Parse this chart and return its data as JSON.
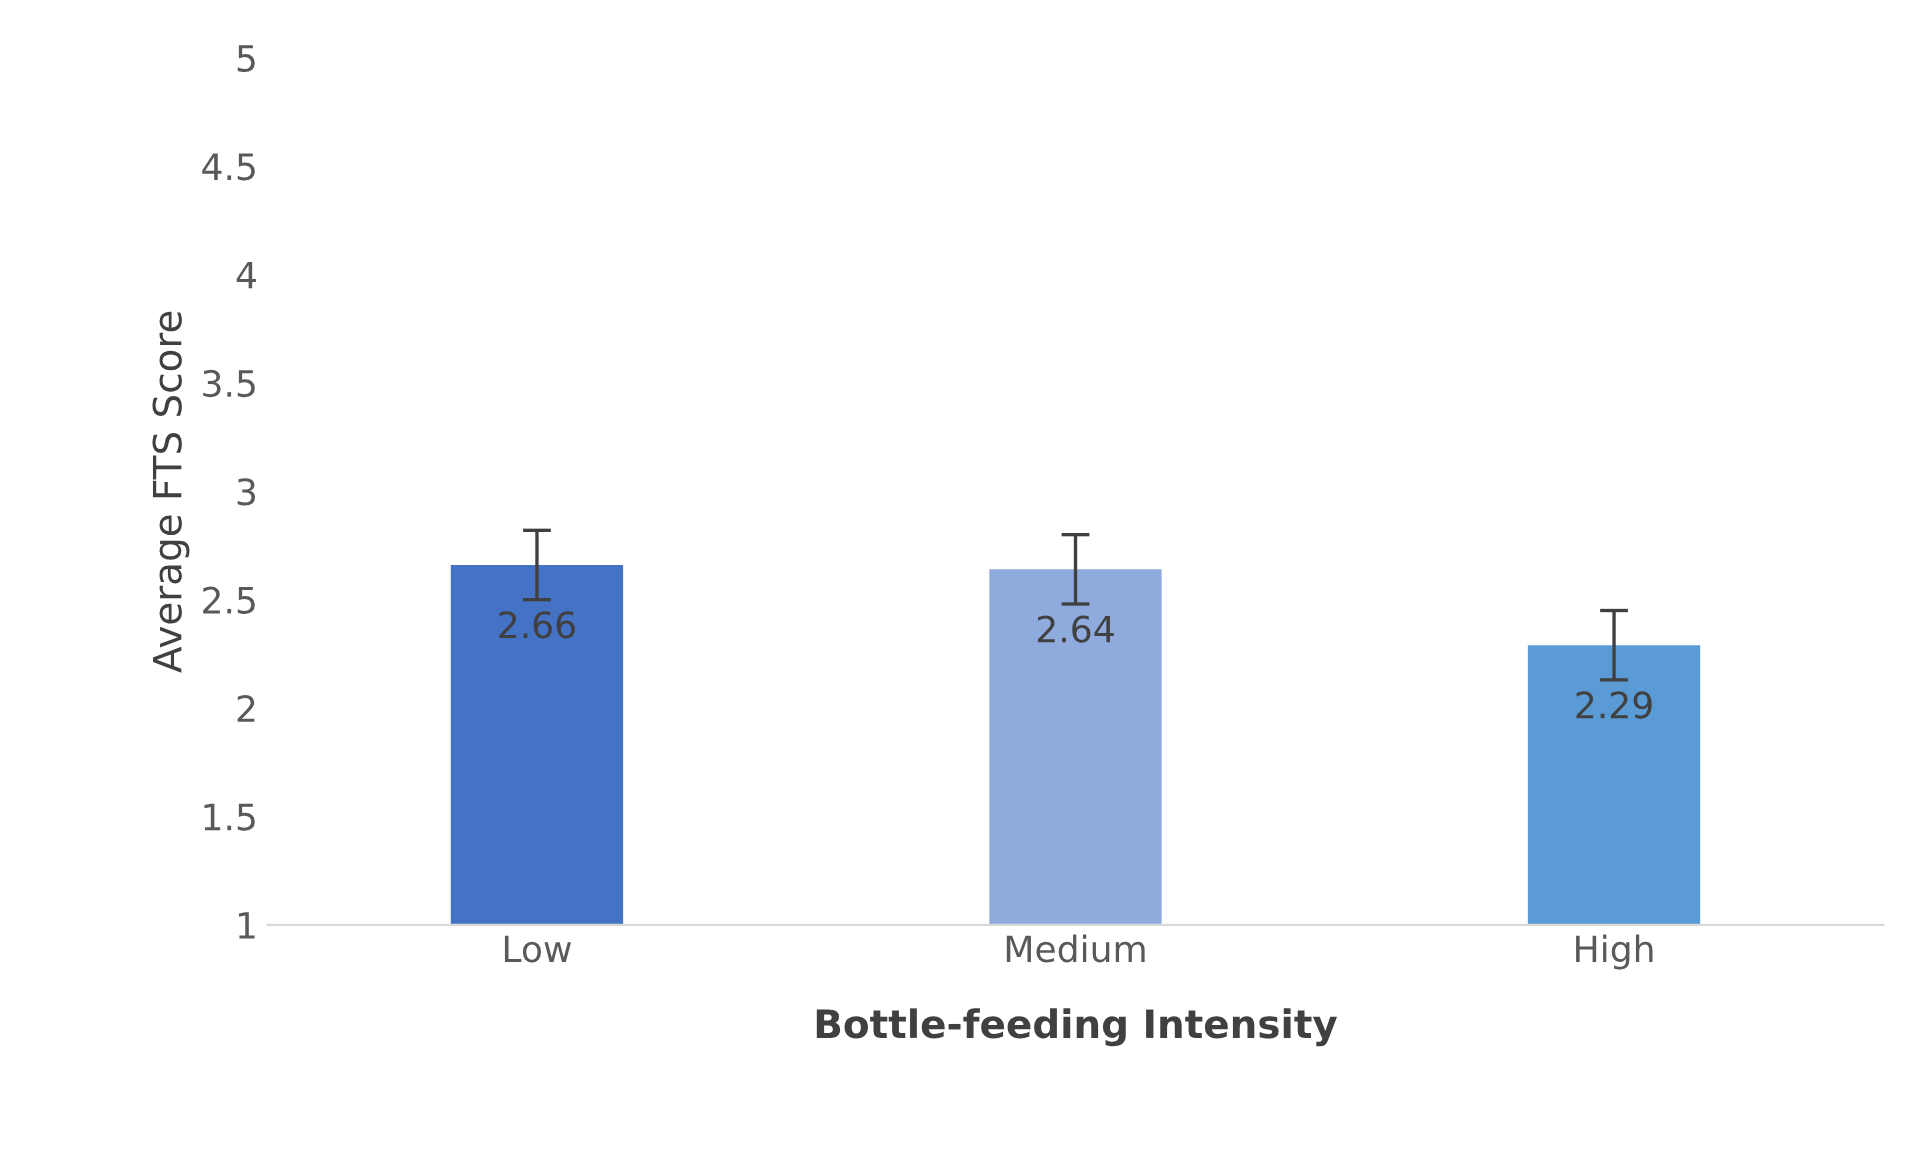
{
  "chart_data": {
    "type": "bar",
    "xlabel": "Bottle-feeding Intensity",
    "ylabel": "Average FTS Score",
    "categories": [
      "Low",
      "Medium",
      "High"
    ],
    "values": [
      2.66,
      2.64,
      2.29
    ],
    "colors": [
      "#4472c4",
      "#8faadc",
      "#5b9bd5"
    ],
    "errors": [
      0.16,
      0.16,
      0.16
    ],
    "ylim": [
      1,
      5
    ],
    "yticks": [
      1,
      1.5,
      2,
      2.5,
      3,
      3.5,
      4,
      4.5,
      5
    ],
    "grid": false,
    "data_labels": true
  }
}
